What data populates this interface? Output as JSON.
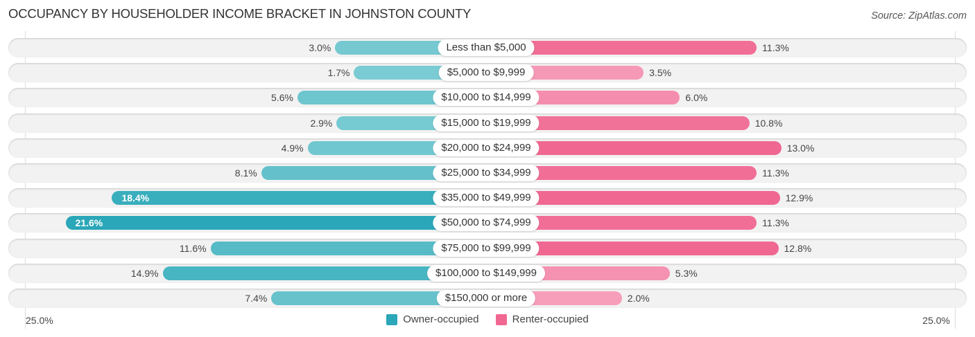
{
  "header": {
    "title": "Occupancy by Householder Income Bracket in Johnston County",
    "source": "Source: ZipAtlas.com"
  },
  "colors": {
    "owner": "#2aa7b8",
    "owner_light": "#7ecdd4",
    "renter": "#f06892",
    "renter_light": "#f7a2bd",
    "track": "#f2f2f2"
  },
  "chart_data": {
    "type": "bar",
    "orientation": "horizontal-diverging",
    "title": "Occupancy by Householder Income Bracket in Johnston County",
    "categories": [
      "Less than $5,000",
      "$5,000 to $9,999",
      "$10,000 to $14,999",
      "$15,000 to $19,999",
      "$20,000 to $24,999",
      "$25,000 to $34,999",
      "$35,000 to $49,999",
      "$50,000 to $74,999",
      "$75,000 to $99,999",
      "$100,000 to $149,999",
      "$150,000 or more"
    ],
    "series": [
      {
        "name": "Owner-occupied",
        "side": "left",
        "values": [
          3.0,
          1.7,
          5.6,
          2.9,
          4.9,
          8.1,
          18.4,
          21.6,
          11.6,
          14.9,
          7.4
        ],
        "labels": [
          "3.0%",
          "1.7%",
          "5.6%",
          "2.9%",
          "4.9%",
          "8.1%",
          "18.4%",
          "21.6%",
          "11.6%",
          "14.9%",
          "7.4%"
        ]
      },
      {
        "name": "Renter-occupied",
        "side": "right",
        "values": [
          11.3,
          3.5,
          6.0,
          10.8,
          13.0,
          11.3,
          12.9,
          11.3,
          12.8,
          5.3,
          2.0
        ],
        "labels": [
          "11.3%",
          "3.5%",
          "6.0%",
          "10.8%",
          "13.0%",
          "11.3%",
          "12.9%",
          "11.3%",
          "12.8%",
          "5.3%",
          "2.0%"
        ]
      }
    ],
    "xlim": [
      -25,
      25
    ],
    "axis_labels": {
      "left": "25.0%",
      "right": "25.0%"
    },
    "unit": "%",
    "legend": {
      "position": "bottom-center",
      "entries": [
        "Owner-occupied",
        "Renter-occupied"
      ]
    },
    "grid": false
  }
}
